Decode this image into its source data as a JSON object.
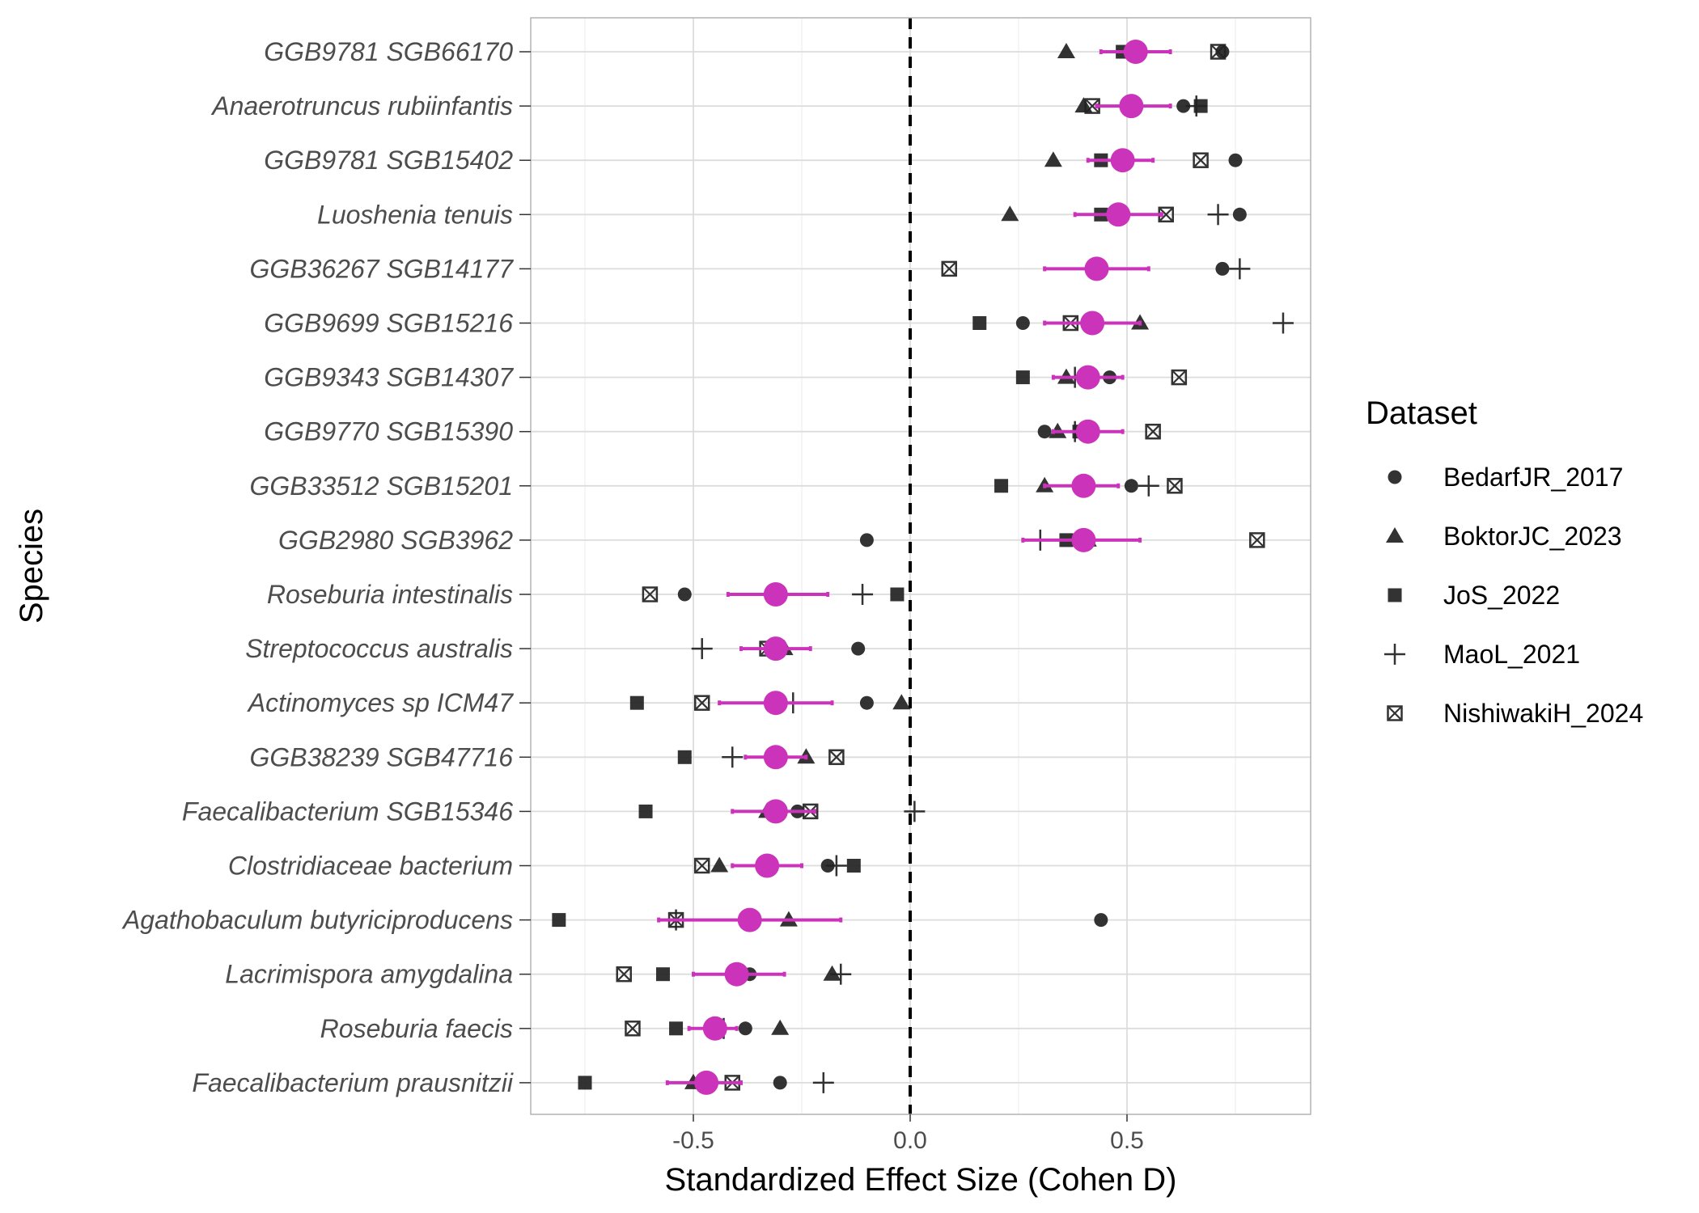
{
  "chart_data": {
    "type": "scatter",
    "title": "",
    "xlabel": "Standardized Effect Size (Cohen D)",
    "ylabel": "Species",
    "xlim": [
      -0.9,
      0.9
    ],
    "x_ticks": [
      -0.5,
      0.0,
      0.5
    ],
    "x_tick_labels": [
      "-0.5",
      "0.0",
      "0.5"
    ],
    "grid": true,
    "reference_line": {
      "x": 0,
      "style": "dashed"
    },
    "legend": {
      "title": "Dataset",
      "placement": "right"
    },
    "summary_color": "#CC33BB",
    "point_color": "#222222",
    "datasets": [
      {
        "name": "BedarfJR_2017",
        "shape": "circle"
      },
      {
        "name": "BoktorJC_2023",
        "shape": "triangle"
      },
      {
        "name": "JoS_2022",
        "shape": "square"
      },
      {
        "name": "MaoL_2021",
        "shape": "plus"
      },
      {
        "name": "NishiwakiH_2024",
        "shape": "boxed-x"
      }
    ],
    "species": [
      {
        "name": "GGB9781 SGB66170",
        "effect": 0.52,
        "ci": [
          0.44,
          0.6
        ],
        "values": [
          0.72,
          0.36,
          0.49,
          0.53,
          0.71
        ]
      },
      {
        "name": "Anaerotruncus rubiinfantis",
        "effect": 0.51,
        "ci": [
          0.43,
          0.6
        ],
        "values": [
          0.63,
          0.4,
          0.67,
          0.66,
          0.42
        ]
      },
      {
        "name": "GGB9781 SGB15402",
        "effect": 0.49,
        "ci": [
          0.41,
          0.56
        ],
        "values": [
          0.75,
          0.33,
          0.44,
          0.49,
          0.67
        ]
      },
      {
        "name": "Luoshenia tenuis",
        "effect": 0.48,
        "ci": [
          0.38,
          0.58
        ],
        "values": [
          0.76,
          0.23,
          0.44,
          0.71,
          0.59
        ]
      },
      {
        "name": "GGB36267 SGB14177",
        "effect": 0.43,
        "ci": [
          0.31,
          0.55
        ],
        "values": [
          0.72,
          0.43,
          0.43,
          0.76,
          0.09
        ]
      },
      {
        "name": "GGB9699 SGB15216",
        "effect": 0.42,
        "ci": [
          0.31,
          0.53
        ],
        "values": [
          0.26,
          0.53,
          0.16,
          0.86,
          0.37
        ]
      },
      {
        "name": "GGB9343 SGB14307",
        "effect": 0.41,
        "ci": [
          0.33,
          0.49
        ],
        "values": [
          0.46,
          0.36,
          0.26,
          0.38,
          0.62
        ]
      },
      {
        "name": "GGB9770 SGB15390",
        "effect": 0.41,
        "ci": [
          0.33,
          0.49
        ],
        "values": [
          0.31,
          0.34,
          0.39,
          0.38,
          0.56
        ]
      },
      {
        "name": "GGB33512 SGB15201",
        "effect": 0.4,
        "ci": [
          0.31,
          0.48
        ],
        "values": [
          0.51,
          0.31,
          0.21,
          0.55,
          0.61
        ]
      },
      {
        "name": "GGB2980 SGB3962",
        "effect": 0.4,
        "ci": [
          0.26,
          0.53
        ],
        "values": [
          -0.1,
          0.41,
          0.36,
          0.3,
          0.8
        ]
      },
      {
        "name": "Roseburia intestinalis",
        "effect": -0.31,
        "ci": [
          -0.42,
          -0.19
        ],
        "values": [
          -0.52,
          -0.31,
          -0.03,
          -0.11,
          -0.6
        ]
      },
      {
        "name": "Streptococcus australis",
        "effect": -0.31,
        "ci": [
          -0.39,
          -0.23
        ],
        "values": [
          -0.12,
          -0.29,
          -0.31,
          -0.48,
          -0.33
        ]
      },
      {
        "name": "Actinomyces sp ICM47",
        "effect": -0.31,
        "ci": [
          -0.44,
          -0.18
        ],
        "values": [
          -0.1,
          -0.02,
          -0.63,
          -0.27,
          -0.48
        ]
      },
      {
        "name": "GGB38239 SGB47716",
        "effect": -0.31,
        "ci": [
          -0.38,
          -0.24
        ],
        "values": [
          -0.32,
          -0.24,
          -0.52,
          -0.41,
          -0.17
        ]
      },
      {
        "name": "Faecalibacterium SGB15346",
        "effect": -0.31,
        "ci": [
          -0.41,
          -0.22
        ],
        "values": [
          -0.26,
          -0.33,
          -0.61,
          0.01,
          -0.23
        ]
      },
      {
        "name": "Clostridiaceae bacterium",
        "effect": -0.33,
        "ci": [
          -0.41,
          -0.25
        ],
        "values": [
          -0.19,
          -0.44,
          -0.13,
          -0.17,
          -0.48
        ]
      },
      {
        "name": "Agathobaculum butyriciproducens",
        "effect": -0.37,
        "ci": [
          -0.58,
          -0.16
        ],
        "values": [
          0.44,
          -0.28,
          -0.81,
          -0.54,
          -0.54
        ]
      },
      {
        "name": "Lacrimispora amygdalina",
        "effect": -0.4,
        "ci": [
          -0.5,
          -0.29
        ],
        "values": [
          -0.37,
          -0.18,
          -0.57,
          -0.16,
          -0.66
        ]
      },
      {
        "name": "Roseburia faecis",
        "effect": -0.45,
        "ci": [
          -0.51,
          -0.4
        ],
        "values": [
          -0.38,
          -0.3,
          -0.54,
          -0.43,
          -0.64
        ]
      },
      {
        "name": "Faecalibacterium prausnitzii",
        "effect": -0.47,
        "ci": [
          -0.56,
          -0.39
        ],
        "values": [
          -0.3,
          -0.5,
          -0.75,
          -0.2,
          -0.41
        ]
      }
    ]
  }
}
